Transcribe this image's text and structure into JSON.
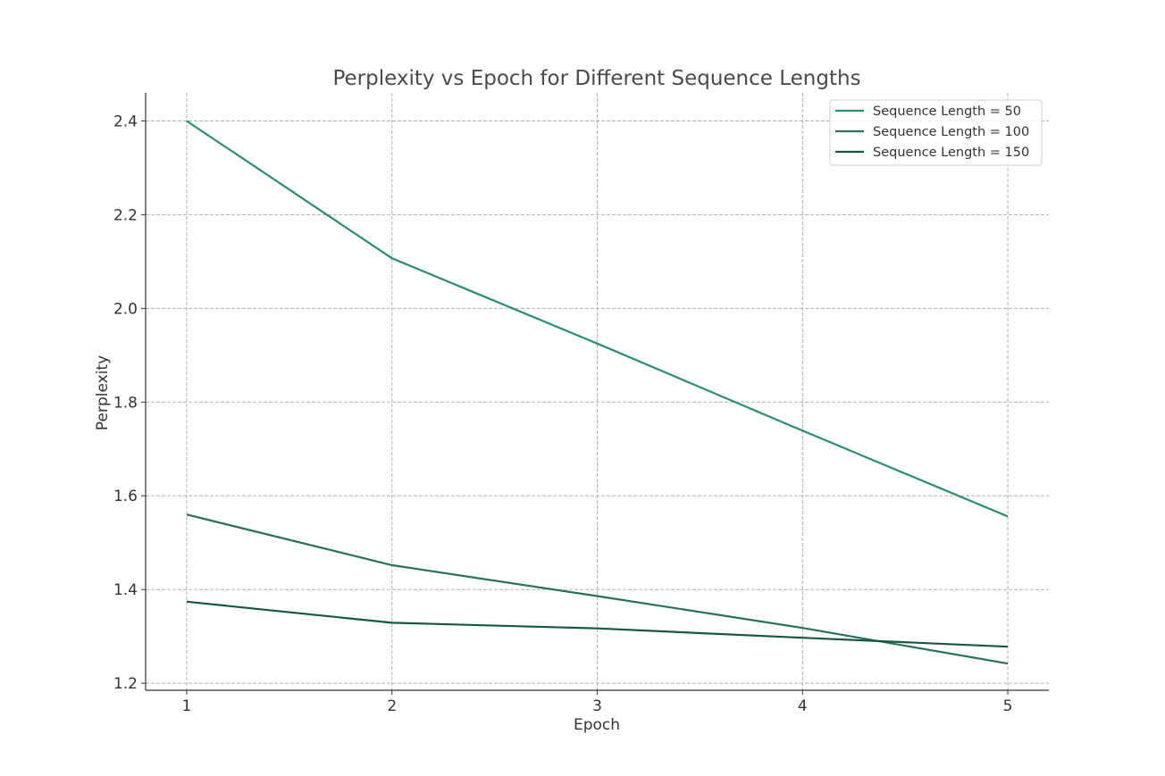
{
  "chart_data": {
    "type": "line",
    "title": "Perplexity vs Epoch for Different Sequence Lengths",
    "xlabel": "Epoch",
    "ylabel": "Perplexity",
    "x": [
      1,
      2,
      3,
      4,
      5
    ],
    "xticks": [
      "1",
      "2",
      "3",
      "4",
      "5"
    ],
    "yticks": [
      "1.2",
      "1.4",
      "1.6",
      "1.8",
      "2.0",
      "2.2",
      "2.4"
    ],
    "xlim": [
      0.8,
      5.2
    ],
    "ylim": [
      1.185,
      2.46
    ],
    "grid": true,
    "legend_position": "top-right",
    "series": [
      {
        "name": "Sequence Length = 50",
        "color": "#2e8b74",
        "values": [
          2.4,
          2.107,
          1.925,
          1.739,
          1.556
        ]
      },
      {
        "name": "Sequence Length = 100",
        "color": "#2a6e5e",
        "values": [
          1.56,
          1.452,
          1.386,
          1.318,
          1.242
        ]
      },
      {
        "name": "Sequence Length = 150",
        "color": "#175545",
        "values": [
          1.374,
          1.329,
          1.317,
          1.297,
          1.278
        ]
      }
    ]
  }
}
